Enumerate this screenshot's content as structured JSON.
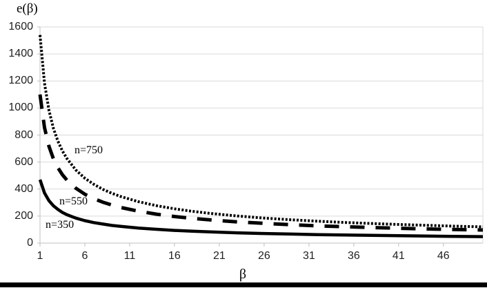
{
  "page": {
    "background_color": "#ffffff",
    "bottom_bar_color": "#000000"
  },
  "chart_data": {
    "type": "line",
    "title": "",
    "y_axis_label": "e(β)",
    "x_axis_label": "β",
    "xlim": [
      1,
      50.4
    ],
    "ylim": [
      0,
      1600
    ],
    "x_ticks": [
      1,
      6,
      11,
      16,
      21,
      26,
      31,
      36,
      41,
      46
    ],
    "y_ticks": [
      0,
      200,
      400,
      600,
      800,
      1000,
      1200,
      1400,
      1600
    ],
    "grid": true,
    "gridline_color": "#d9d9d9",
    "axis_color": "#bfbfbf",
    "legend_position": "none",
    "series": [
      {
        "name": "n=750",
        "style": "dotted",
        "color": "#000000",
        "points": [
          [
            1,
            1540
          ],
          [
            1.5,
            1184
          ],
          [
            2,
            982
          ],
          [
            2.5,
            848
          ],
          [
            3,
            754
          ],
          [
            3.5,
            682
          ],
          [
            4,
            626
          ],
          [
            5,
            541
          ],
          [
            6,
            480
          ],
          [
            7,
            435
          ],
          [
            8,
            398
          ],
          [
            9,
            369
          ],
          [
            10,
            345
          ],
          [
            12,
            306
          ],
          [
            14,
            277
          ],
          [
            16,
            254
          ],
          [
            18,
            235
          ],
          [
            20,
            220
          ],
          [
            23,
            201
          ],
          [
            26,
            185
          ],
          [
            29,
            173
          ],
          [
            32,
            162
          ],
          [
            35,
            153
          ],
          [
            38,
            145
          ],
          [
            41,
            138
          ],
          [
            44,
            132
          ],
          [
            47,
            126
          ],
          [
            50.4,
            120
          ]
        ]
      },
      {
        "name": "n=550",
        "style": "dashed",
        "color": "#000000",
        "points": [
          [
            1,
            1100
          ],
          [
            1.5,
            855
          ],
          [
            2,
            716
          ],
          [
            2.5,
            623
          ],
          [
            3,
            557
          ],
          [
            3.5,
            506
          ],
          [
            4,
            466
          ],
          [
            5,
            406
          ],
          [
            6,
            362
          ],
          [
            7,
            329
          ],
          [
            8,
            303
          ],
          [
            9,
            282
          ],
          [
            10,
            264
          ],
          [
            12,
            236
          ],
          [
            14,
            214
          ],
          [
            16,
            197
          ],
          [
            18,
            183
          ],
          [
            20,
            172
          ],
          [
            23,
            157
          ],
          [
            26,
            146
          ],
          [
            29,
            136
          ],
          [
            32,
            128
          ],
          [
            35,
            121
          ],
          [
            38,
            115
          ],
          [
            41,
            110
          ],
          [
            44,
            105
          ],
          [
            47,
            101
          ],
          [
            50.4,
            97
          ]
        ]
      },
      {
        "name": "n=350",
        "style": "solid",
        "color": "#000000",
        "points": [
          [
            1,
            470
          ],
          [
            1.5,
            371
          ],
          [
            2,
            314
          ],
          [
            2.5,
            276
          ],
          [
            3,
            249
          ],
          [
            3.5,
            227
          ],
          [
            4,
            210
          ],
          [
            5,
            185
          ],
          [
            6,
            166
          ],
          [
            7,
            152
          ],
          [
            8,
            141
          ],
          [
            9,
            131
          ],
          [
            10,
            124
          ],
          [
            12,
            111
          ],
          [
            14,
            102
          ],
          [
            16,
            94
          ],
          [
            18,
            88
          ],
          [
            20,
            83
          ],
          [
            23,
            76
          ],
          [
            26,
            71
          ],
          [
            29,
            67
          ],
          [
            32,
            63
          ],
          [
            35,
            60
          ],
          [
            38,
            57
          ],
          [
            41,
            55
          ],
          [
            44,
            52
          ],
          [
            47,
            50
          ],
          [
            50.4,
            48
          ]
        ]
      }
    ],
    "annotations": [
      {
        "text": "n=750",
        "beta": 4.85,
        "value": 731
      },
      {
        "text": "n=550",
        "beta": 3.15,
        "value": 353
      },
      {
        "text": "n=350",
        "beta": 1.62,
        "value": 179
      }
    ]
  }
}
